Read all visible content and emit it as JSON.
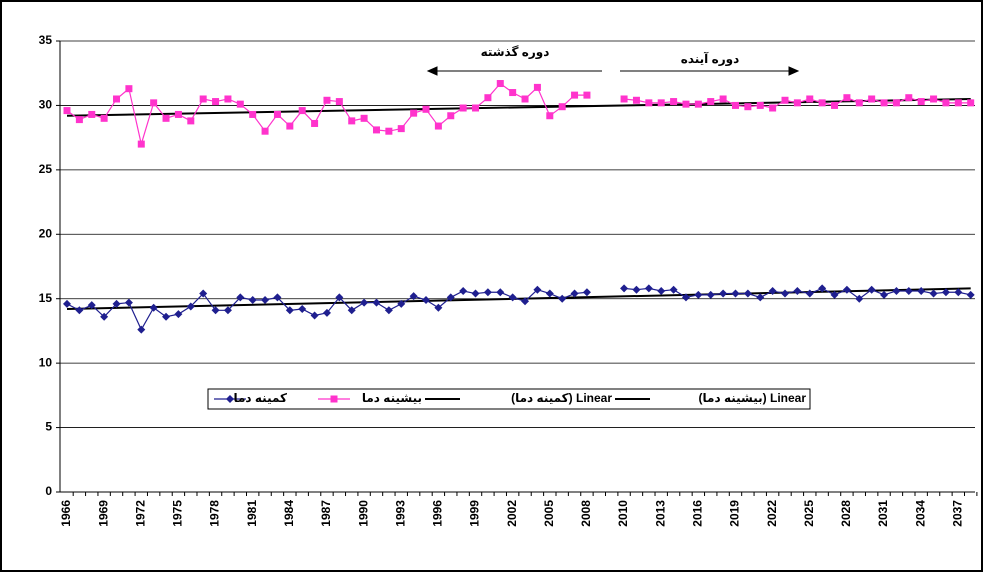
{
  "chart_data": {
    "type": "line",
    "categories": [
      1966,
      null,
      null,
      1969,
      null,
      null,
      1972,
      null,
      null,
      1975,
      null,
      null,
      1978,
      null,
      null,
      1981,
      null,
      null,
      1984,
      null,
      null,
      1987,
      null,
      null,
      1990,
      null,
      null,
      1993,
      null,
      null,
      1996,
      null,
      null,
      1999,
      null,
      null,
      2002,
      null,
      null,
      2005,
      null,
      null,
      2008,
      null,
      null,
      2010,
      null,
      null,
      2013,
      null,
      null,
      2016,
      null,
      null,
      2019,
      null,
      null,
      2022,
      null,
      null,
      2025,
      null,
      null,
      2028,
      null,
      null,
      2031,
      null,
      null,
      2034,
      null,
      null,
      2037,
      null
    ],
    "series": [
      {
        "name": "کمینه دما",
        "color": "#1f1f8f",
        "marker": "diamond",
        "values": [
          14.6,
          14.1,
          14.5,
          13.6,
          14.6,
          14.7,
          12.6,
          14.3,
          13.6,
          13.8,
          14.4,
          15.4,
          14.1,
          14.1,
          15.1,
          14.9,
          14.9,
          15.1,
          14.1,
          14.2,
          13.7,
          13.9,
          15.1,
          14.1,
          14.7,
          14.7,
          14.1,
          14.6,
          15.2,
          14.9,
          14.3,
          15.1,
          15.6,
          15.4,
          15.5,
          15.5,
          15.1,
          14.8,
          15.7,
          15.4,
          15.0,
          15.4,
          15.5,
          null,
          null,
          15.8,
          15.7,
          15.8,
          15.6,
          15.7,
          15.1,
          15.3,
          15.3,
          15.4,
          15.4,
          15.4,
          15.1,
          15.6,
          15.4,
          15.6,
          15.4,
          15.8,
          15.3,
          15.7,
          15.0,
          15.7,
          15.3,
          15.6,
          15.6,
          15.6,
          15.4,
          15.5,
          15.5,
          15.3
        ]
      },
      {
        "name": "بیشینه دما",
        "color": "#ff33cc",
        "marker": "square",
        "values": [
          29.6,
          28.9,
          29.3,
          29.0,
          30.5,
          31.3,
          27.0,
          30.2,
          29.0,
          29.3,
          28.8,
          30.5,
          30.3,
          30.5,
          30.1,
          29.3,
          28.0,
          29.3,
          28.4,
          29.6,
          28.6,
          30.4,
          30.3,
          28.8,
          29.0,
          28.1,
          28.0,
          28.2,
          29.4,
          29.7,
          28.4,
          29.2,
          29.8,
          29.8,
          30.6,
          31.7,
          31.0,
          30.5,
          31.4,
          29.2,
          29.9,
          30.8,
          30.8,
          null,
          null,
          30.5,
          30.4,
          30.2,
          30.2,
          30.3,
          30.1,
          30.1,
          30.3,
          30.5,
          30.0,
          29.9,
          30.0,
          29.8,
          30.4,
          30.2,
          30.5,
          30.2,
          30.0,
          30.6,
          30.2,
          30.5,
          30.2,
          30.2,
          30.6,
          30.3,
          30.5,
          30.2,
          30.2,
          30.2
        ]
      }
    ],
    "trendlines": [
      {
        "name": "Linear (کمینه دما)",
        "color": "#000000",
        "values": [
          14.2,
          15.8
        ]
      },
      {
        "name": "Linear (بیشینه دما)",
        "color": "#000000",
        "values": [
          29.2,
          30.5
        ]
      }
    ],
    "annotations": [
      "دوره گذشته",
      "دوره آینده"
    ],
    "ylim": [
      0,
      35
    ],
    "yticks": [
      0,
      5,
      10,
      15,
      20,
      25,
      30,
      35
    ],
    "grid": true
  }
}
